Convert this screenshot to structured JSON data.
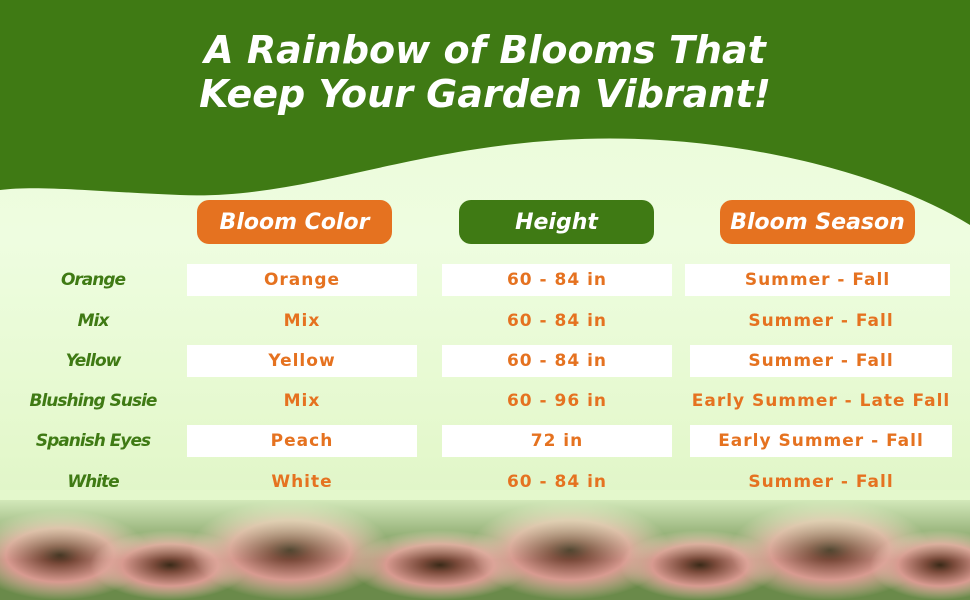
{
  "title": {
    "line1": "A Rainbow of Blooms That",
    "line2": "Keep Your Garden Vibrant!"
  },
  "headers": {
    "color": "Bloom Color",
    "height": "Height",
    "season": "Bloom Season"
  },
  "rows": [
    {
      "variety": "Orange",
      "color": "Orange",
      "height": "60 - 84 in",
      "season": "Summer - Fall"
    },
    {
      "variety": "Mix",
      "color": "Mix",
      "height": "60 - 84 in",
      "season": "Summer - Fall"
    },
    {
      "variety": "Yellow",
      "color": "Yellow",
      "height": "60 - 84  in",
      "season": "Summer - Fall"
    },
    {
      "variety": "Blushing Susie",
      "color": "Mix",
      "height": "60 - 96 in",
      "season": "Early Summer - Late Fall"
    },
    {
      "variety": "Spanish Eyes",
      "color": "Peach",
      "height": "72 in",
      "season": "Early Summer - Fall"
    },
    {
      "variety": "White",
      "color": "White",
      "height": "60 - 84 in",
      "season": "Summer - Fall"
    }
  ],
  "colors": {
    "green": "#3f7a14",
    "orange": "#e57220"
  }
}
